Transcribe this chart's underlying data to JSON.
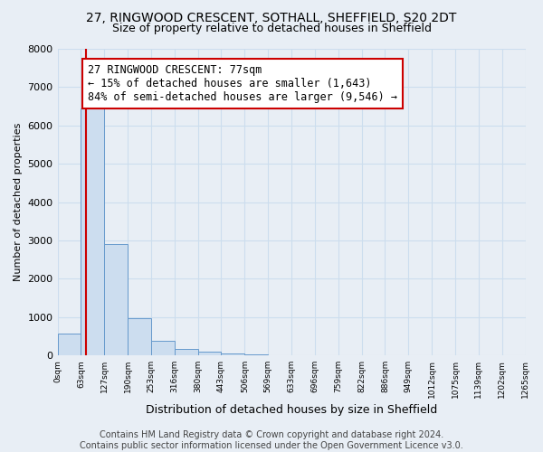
{
  "title1": "27, RINGWOOD CRESCENT, SOTHALL, SHEFFIELD, S20 2DT",
  "title2": "Size of property relative to detached houses in Sheffield",
  "xlabel": "Distribution of detached houses by size in Sheffield",
  "ylabel": "Number of detached properties",
  "bin_edges": [
    0,
    63,
    127,
    190,
    253,
    316,
    380,
    443,
    506,
    569,
    633,
    696,
    759,
    822,
    886,
    949,
    1012,
    1075,
    1139,
    1202,
    1265
  ],
  "bar_heights": [
    570,
    6450,
    2900,
    970,
    370,
    155,
    105,
    60,
    35,
    5,
    3,
    2,
    1,
    1,
    1,
    0,
    0,
    0,
    0,
    0
  ],
  "bar_color": "#ccddef",
  "bar_edge_color": "#6699cc",
  "property_sqm": 77,
  "vline_color": "#cc0000",
  "annotation_line1": "27 RINGWOOD CRESCENT: 77sqm",
  "annotation_line2": "← 15% of detached houses are smaller (1,643)",
  "annotation_line3": "84% of semi-detached houses are larger (9,546) →",
  "annotation_box_color": "#ffffff",
  "annotation_box_edge_color": "#cc0000",
  "ylim": [
    0,
    8000
  ],
  "yticks": [
    0,
    1000,
    2000,
    3000,
    4000,
    5000,
    6000,
    7000,
    8000
  ],
  "xtick_labels": [
    "0sqm",
    "63sqm",
    "127sqm",
    "190sqm",
    "253sqm",
    "316sqm",
    "380sqm",
    "443sqm",
    "506sqm",
    "569sqm",
    "633sqm",
    "696sqm",
    "759sqm",
    "822sqm",
    "886sqm",
    "949sqm",
    "1012sqm",
    "1075sqm",
    "1139sqm",
    "1202sqm",
    "1265sqm"
  ],
  "grid_color": "#ccddee",
  "background_color": "#e8eef5",
  "footer_text": "Contains HM Land Registry data © Crown copyright and database right 2024.\nContains public sector information licensed under the Open Government Licence v3.0.",
  "title1_fontsize": 10,
  "title2_fontsize": 9,
  "annotation_fontsize": 8.5,
  "footer_fontsize": 7,
  "ylabel_fontsize": 8,
  "xlabel_fontsize": 9
}
